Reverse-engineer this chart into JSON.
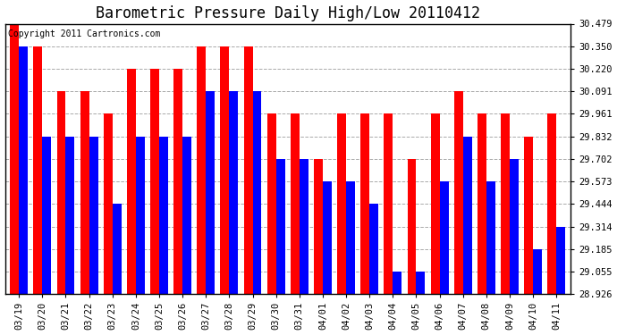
{
  "title": "Barometric Pressure Daily High/Low 20110412",
  "copyright": "Copyright 2011 Cartronics.com",
  "dates": [
    "03/19",
    "03/20",
    "03/21",
    "03/22",
    "03/23",
    "03/24",
    "03/25",
    "03/26",
    "03/27",
    "03/28",
    "03/29",
    "03/30",
    "03/31",
    "04/01",
    "04/02",
    "04/03",
    "04/04",
    "04/05",
    "04/06",
    "04/07",
    "04/08",
    "04/09",
    "04/10",
    "04/11"
  ],
  "highs": [
    30.479,
    30.35,
    30.091,
    30.091,
    29.961,
    30.22,
    30.22,
    30.22,
    30.35,
    30.35,
    30.35,
    29.961,
    29.961,
    29.702,
    29.961,
    29.961,
    29.961,
    29.702,
    29.961,
    30.091,
    29.961,
    29.961,
    29.832,
    29.961
  ],
  "lows": [
    30.35,
    29.832,
    29.832,
    29.832,
    29.444,
    29.832,
    29.832,
    29.832,
    30.091,
    30.091,
    30.091,
    29.702,
    29.702,
    29.573,
    29.573,
    29.444,
    29.055,
    29.055,
    29.573,
    29.832,
    29.573,
    29.702,
    29.185,
    29.314
  ],
  "high_color": "#ff0000",
  "low_color": "#0000ff",
  "background_color": "#ffffff",
  "grid_color": "#aaaaaa",
  "yticks": [
    28.926,
    29.055,
    29.185,
    29.314,
    29.444,
    29.573,
    29.702,
    29.832,
    29.961,
    30.091,
    30.22,
    30.35,
    30.479
  ],
  "ymin": 28.926,
  "ymax": 30.479,
  "bar_width": 0.38,
  "title_fontsize": 12,
  "tick_fontsize": 7.5,
  "copyright_fontsize": 7
}
